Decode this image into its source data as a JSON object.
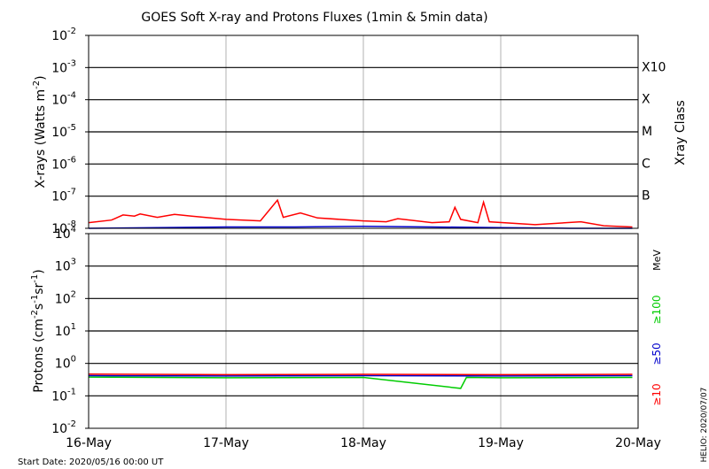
{
  "chart_data": [
    {
      "type": "line",
      "title": "GOES Soft X-ray and Protons Fluxes   (1min & 5min data)",
      "ylabel": "X-rays (Watts m^-2)",
      "y_scale": "log",
      "ylim": [
        1e-08,
        0.01
      ],
      "ytick_exponents": [
        -8,
        -7,
        -6,
        -5,
        -4,
        -3,
        -2
      ],
      "x_ticks": [
        "16-May",
        "17-May",
        "18-May",
        "19-May",
        "20-May"
      ],
      "xlim": [
        "2020-05-16",
        "2020-05-20"
      ],
      "grid": true,
      "right_axis_label": "Xray Class",
      "class_labels": [
        {
          "label": "X10",
          "flux": 0.001
        },
        {
          "label": "X",
          "flux": 0.0001
        },
        {
          "label": "M",
          "flux": 1e-05
        },
        {
          "label": "C",
          "flux": 1e-06
        },
        {
          "label": "B",
          "flux": 1e-07
        }
      ],
      "series": [
        {
          "color": "#ff0000",
          "values": [
            [
              "2020-05-16T00:00",
              1.5e-08
            ],
            [
              "2020-05-16T04:00",
              1.8e-08
            ],
            [
              "2020-05-16T06:00",
              2.6e-08
            ],
            [
              "2020-05-16T08:00",
              2.4e-08
            ],
            [
              "2020-05-16T09:00",
              2.8e-08
            ],
            [
              "2020-05-16T12:00",
              2.2e-08
            ],
            [
              "2020-05-16T15:00",
              2.7e-08
            ],
            [
              "2020-05-16T18:00",
              2.4e-08
            ],
            [
              "2020-05-17T00:00",
              1.9e-08
            ],
            [
              "2020-05-17T06:00",
              1.7e-08
            ],
            [
              "2020-05-17T09:00",
              7.5e-08
            ],
            [
              "2020-05-17T10:00",
              2.2e-08
            ],
            [
              "2020-05-17T13:00",
              3e-08
            ],
            [
              "2020-05-17T16:00",
              2.1e-08
            ],
            [
              "2020-05-18T00:00",
              1.7e-08
            ],
            [
              "2020-05-18T04:00",
              1.6e-08
            ],
            [
              "2020-05-18T06:00",
              2e-08
            ],
            [
              "2020-05-18T12:00",
              1.5e-08
            ],
            [
              "2020-05-18T15:00",
              1.6e-08
            ],
            [
              "2020-05-18T16:00",
              4.5e-08
            ],
            [
              "2020-05-18T17:00",
              1.9e-08
            ],
            [
              "2020-05-18T20:00",
              1.5e-08
            ],
            [
              "2020-05-18T21:00",
              6.5e-08
            ],
            [
              "2020-05-18T22:00",
              1.6e-08
            ],
            [
              "2020-05-19T06:00",
              1.3e-08
            ],
            [
              "2020-05-19T14:00",
              1.6e-08
            ],
            [
              "2020-05-19T18:00",
              1.2e-08
            ],
            [
              "2020-05-19T23:00",
              1.1e-08
            ]
          ]
        },
        {
          "color": "#0000cc",
          "values": [
            [
              "2020-05-16T00:00",
              1e-08
            ],
            [
              "2020-05-16T12:00",
              1.05e-08
            ],
            [
              "2020-05-17T00:00",
              1.1e-08
            ],
            [
              "2020-05-17T12:00",
              1.1e-08
            ],
            [
              "2020-05-18T00:00",
              1.15e-08
            ],
            [
              "2020-05-18T12:00",
              1.1e-08
            ],
            [
              "2020-05-19T00:00",
              1.05e-08
            ],
            [
              "2020-05-19T12:00",
              1e-08
            ],
            [
              "2020-05-19T23:00",
              1e-08
            ]
          ]
        }
      ]
    },
    {
      "type": "line",
      "ylabel": "Protons (cm^-2 s^-1 sr^-1)",
      "y_scale": "log",
      "ylim": [
        0.01,
        10000
      ],
      "ytick_exponents": [
        -2,
        -1,
        0,
        1,
        2,
        3,
        4
      ],
      "x_ticks": [
        "16-May",
        "17-May",
        "18-May",
        "19-May",
        "20-May"
      ],
      "xlim": [
        "2020-05-16",
        "2020-05-20"
      ],
      "grid": true,
      "threshold_line": 10,
      "right_axis_label": "MeV",
      "series": [
        {
          "name": "≥100",
          "color": "#00cc00",
          "values": [
            [
              "2020-05-16T00:00",
              0.38
            ],
            [
              "2020-05-17T00:00",
              0.36
            ],
            [
              "2020-05-18T00:00",
              0.37
            ],
            [
              "2020-05-18T17:00",
              0.17
            ],
            [
              "2020-05-18T18:00",
              0.37
            ],
            [
              "2020-05-19T00:00",
              0.36
            ],
            [
              "2020-05-19T23:00",
              0.37
            ]
          ]
        },
        {
          "name": "≥50",
          "color": "#0000cc",
          "values": [
            [
              "2020-05-16T00:00",
              0.42
            ],
            [
              "2020-05-17T00:00",
              0.41
            ],
            [
              "2020-05-18T00:00",
              0.42
            ],
            [
              "2020-05-19T00:00",
              0.41
            ],
            [
              "2020-05-19T23:00",
              0.42
            ]
          ]
        },
        {
          "name": "≥10",
          "color": "#ff0000",
          "values": [
            [
              "2020-05-16T00:00",
              0.47
            ],
            [
              "2020-05-17T00:00",
              0.45
            ],
            [
              "2020-05-18T00:00",
              0.46
            ],
            [
              "2020-05-19T00:00",
              0.45
            ],
            [
              "2020-05-19T23:00",
              0.46
            ]
          ]
        }
      ]
    }
  ],
  "footer": {
    "start_date": "Start Date: 2020/05/16 00:00 UT",
    "credit": "HELIO: 2020/07/07"
  }
}
